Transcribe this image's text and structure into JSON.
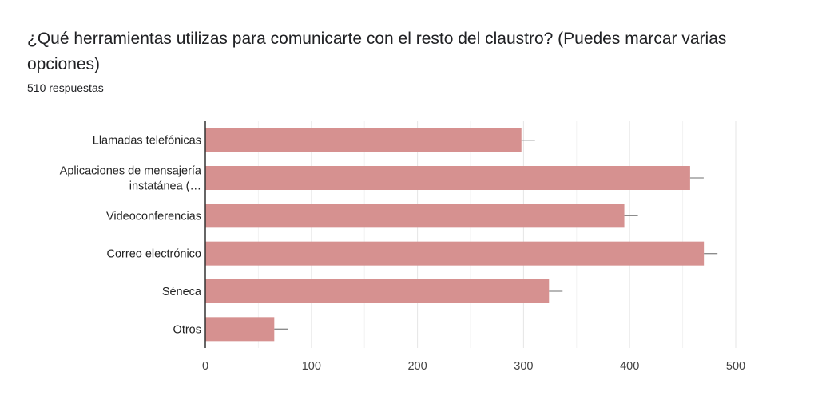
{
  "title": "¿Qué herramientas utilizas para comunicarte con el resto del claustro? (Puedes marcar varias opciones)",
  "subtitle": "510 respuestas",
  "colors": {
    "bar": "#d69190",
    "error_bar": "#8c8c8c",
    "axis": "#333333",
    "grid": "#e6e6e6",
    "text": "#222222"
  },
  "chart_data": {
    "type": "bar",
    "orientation": "horizontal",
    "categories": [
      "Llamadas telefónicas",
      "Aplicaciones de mensajería instatánea (…",
      "Videoconferencias",
      "Correo electrónico",
      "Séneca",
      "Otros"
    ],
    "category_lines": [
      [
        "Llamadas telefónicas"
      ],
      [
        "Aplicaciones de mensajería",
        "instatánea (…"
      ],
      [
        "Videoconferencias"
      ],
      [
        "Correo electrónico"
      ],
      [
        "Séneca"
      ],
      [
        "Otros"
      ]
    ],
    "values": [
      298,
      457,
      395,
      470,
      324,
      65
    ],
    "error_bars": true,
    "xlim": [
      0,
      500
    ],
    "xticks": [
      0,
      100,
      200,
      300,
      400,
      500
    ],
    "grid": true,
    "xlabel": "",
    "ylabel": ""
  }
}
